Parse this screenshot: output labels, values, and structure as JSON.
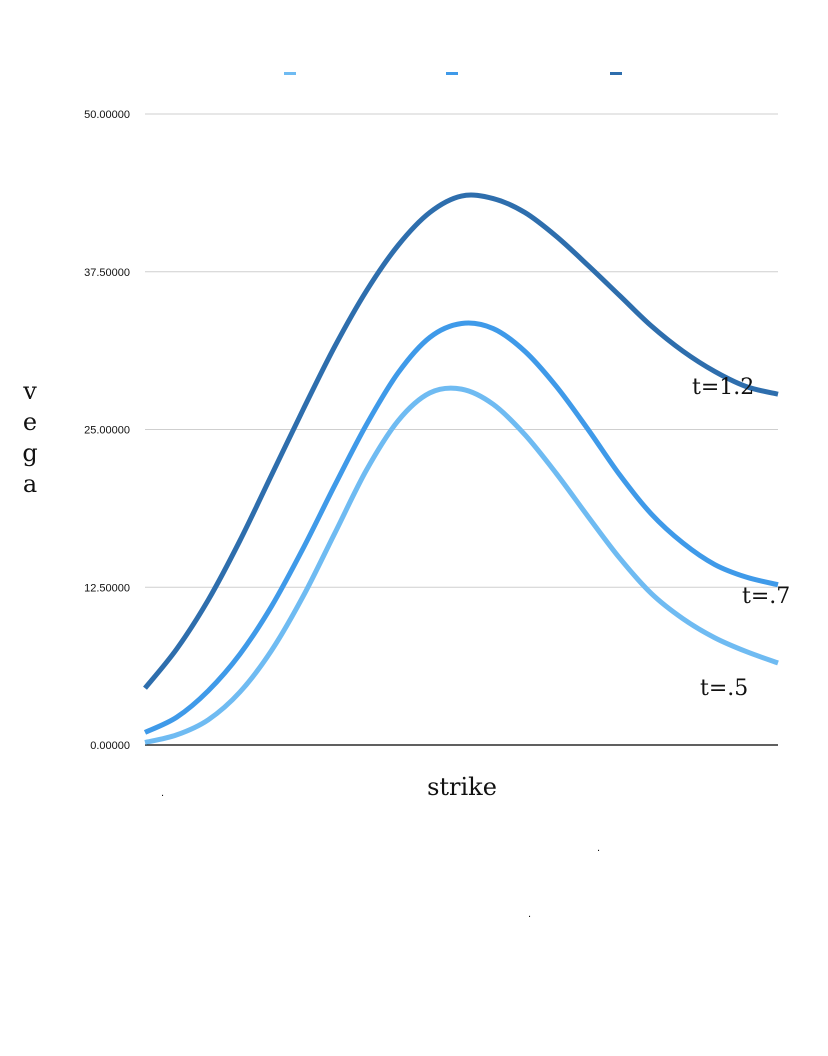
{
  "chart_data": {
    "type": "line",
    "title": "",
    "xlabel": "strike",
    "ylabel": "vega",
    "ylim": [
      0,
      50
    ],
    "y_ticks": [
      "0.00000",
      "12.50000",
      "25.00000",
      "37.50000",
      "50.00000"
    ],
    "grid": true,
    "legend": "top-center",
    "x": [
      0,
      1,
      2,
      3,
      4,
      5,
      6,
      7,
      8,
      9,
      10,
      11,
      12,
      13,
      14,
      15,
      16,
      17,
      18,
      19,
      20
    ],
    "series": [
      {
        "color": "#6fbbf2",
        "end_label": "t=.5",
        "values": [
          0.2,
          0.8,
          2.0,
          4.2,
          7.5,
          11.8,
          16.8,
          21.8,
          25.7,
          27.9,
          28.2,
          27.0,
          24.6,
          21.5,
          18.1,
          14.8,
          12.0,
          10.0,
          8.5,
          7.4,
          6.5
        ]
      },
      {
        "color": "#3f9ae9",
        "end_label": "t=.7",
        "values": [
          1.0,
          2.2,
          4.3,
          7.2,
          11.0,
          15.6,
          20.6,
          25.4,
          29.5,
          32.3,
          33.4,
          33.0,
          31.2,
          28.4,
          25.0,
          21.4,
          18.3,
          16.0,
          14.3,
          13.3,
          12.7
        ]
      },
      {
        "color": "#2e6ead",
        "end_label": "t=1.2",
        "values": [
          4.5,
          7.6,
          11.5,
          16.2,
          21.4,
          26.6,
          31.6,
          36.0,
          39.6,
          42.2,
          43.5,
          43.3,
          42.2,
          40.3,
          38.0,
          35.6,
          33.2,
          31.2,
          29.6,
          28.4,
          27.8
        ]
      }
    ]
  },
  "stray_marks": [
    ".",
    ".",
    "."
  ]
}
